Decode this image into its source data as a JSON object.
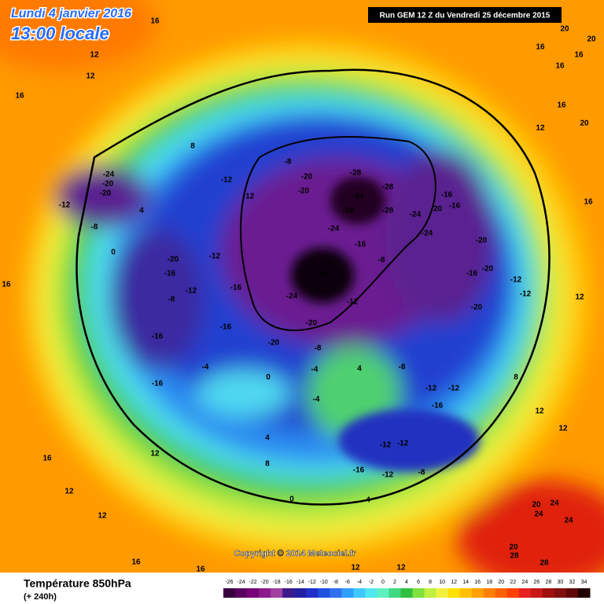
{
  "header": {
    "date": "Lundi 4 janvier 2016",
    "time": "13:00 locale",
    "run": "Run GEM 12 Z du Vendredi 25 décembre 2015"
  },
  "map": {
    "copyright": "Copyright © 2014 Meteociel.fr",
    "labels": [
      -28,
      -28,
      -24,
      -28,
      -28,
      -28,
      -24,
      -24,
      -24,
      -20,
      -20,
      -16,
      -20,
      -16,
      -20,
      -20,
      -16,
      -20,
      -12,
      -12,
      -12,
      -8,
      -20,
      -20,
      -24,
      -16,
      -8,
      -20,
      -16,
      -12,
      -12,
      -8,
      -16,
      -16,
      -16,
      -16,
      -4,
      -12,
      -12,
      -8,
      -24,
      -20,
      -20,
      -12,
      -8,
      -12,
      -12,
      -16,
      -12,
      -12,
      -16,
      -12,
      -8,
      4,
      -8,
      -4,
      0,
      -4,
      4,
      0,
      4,
      8,
      12,
      12,
      16,
      16,
      12,
      12,
      20,
      24,
      24,
      28,
      28,
      24,
      20,
      16,
      12,
      16,
      12,
      16,
      20,
      20,
      16,
      16,
      20,
      16,
      12,
      16,
      16,
      12,
      8,
      12,
      12,
      16,
      12,
      0,
      8,
      4
    ]
  },
  "footer": {
    "title": "Température 850hPa",
    "lead": "(+ 240h)"
  },
  "legend": {
    "ticks": [
      -26,
      -24,
      -22,
      -20,
      -18,
      -16,
      -14,
      -12,
      -10,
      -8,
      -6,
      -4,
      -2,
      0,
      2,
      4,
      6,
      8,
      10,
      12,
      14,
      16,
      18,
      20,
      22,
      24,
      26,
      28,
      30,
      32,
      34
    ],
    "colors": [
      "#3a0040",
      "#5a0060",
      "#780078",
      "#8c1a8c",
      "#a040a0",
      "#3c1a8c",
      "#2020a0",
      "#2030c8",
      "#2050e0",
      "#3070f0",
      "#30a0ff",
      "#40c8ff",
      "#50e8f0",
      "#60f0c0",
      "#40d880",
      "#30c040",
      "#80e040",
      "#c0f040",
      "#f0f040",
      "#ffe000",
      "#ffc000",
      "#ffa000",
      "#ff8000",
      "#ff6000",
      "#ff4000",
      "#e82020",
      "#c81818",
      "#a01010",
      "#801010",
      "#600808",
      "#200000"
    ]
  }
}
